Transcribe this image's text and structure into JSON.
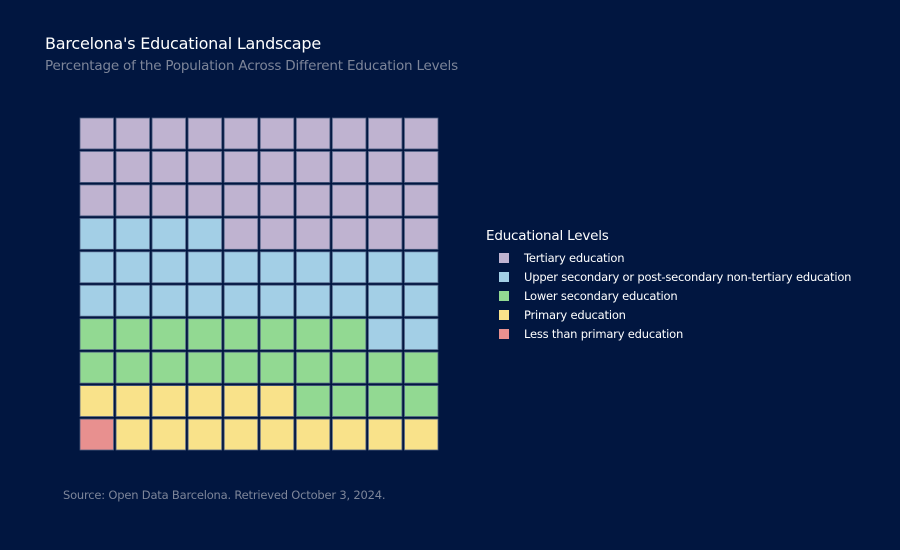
{
  "chart_data": {
    "type": "waffle",
    "title": "Barcelona's Educational Landscape",
    "subtitle": "Percentage of the Population Across Different Education Levels",
    "grid": {
      "rows": 10,
      "cols": 10,
      "fill_order": "bottom-left, row by row left to right, upward"
    },
    "legend_title": "Educational Levels",
    "legend_position": "right",
    "categories": [
      {
        "name": "Less than primary education",
        "value": 1,
        "color": "#e8908f"
      },
      {
        "name": "Primary education",
        "value": 15,
        "color": "#f9e28a"
      },
      {
        "name": "Lower secondary education",
        "value": 22,
        "color": "#92d992"
      },
      {
        "name": "Upper secondary or post-secondary non-tertiary education",
        "value": 26,
        "color": "#a3cfe6"
      },
      {
        "name": "Tertiary education",
        "value": 36,
        "color": "#bfb3d0"
      }
    ],
    "legend_order": [
      "Tertiary education",
      "Upper secondary or post-secondary non-tertiary education",
      "Lower secondary education",
      "Primary education",
      "Less than primary education"
    ],
    "source": "Source: Open Data Barcelona. Retrieved October 3, 2024."
  },
  "colors": {
    "background": "#011640",
    "cell_border": "#4e5f82"
  }
}
